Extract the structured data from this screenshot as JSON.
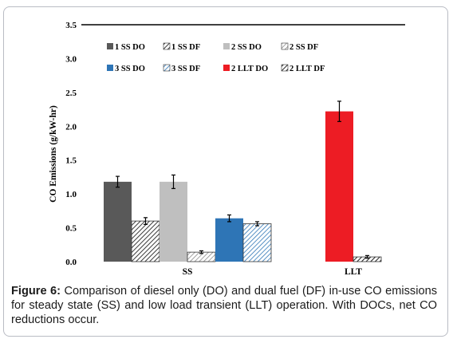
{
  "chart_data": {
    "type": "bar",
    "ylabel": "CO Emissions (g/kW-hr)",
    "xlabel": "",
    "ylim": [
      0.0,
      3.5
    ],
    "yticks": [
      "0.0",
      "0.5",
      "1.0",
      "1.5",
      "2.0",
      "2.5",
      "3.0",
      "3.5"
    ],
    "grid": false,
    "legend_position": "top",
    "groups": [
      {
        "category": "SS",
        "bars": [
          {
            "series": "1 SS DO",
            "value": 1.18,
            "error": 0.08,
            "color": "#595959",
            "pattern": "solid"
          },
          {
            "series": "1 SS DF",
            "value": 0.6,
            "error": 0.05,
            "color": "#595959",
            "pattern": "hatch"
          },
          {
            "series": "2 SS DO",
            "value": 1.18,
            "error": 0.1,
            "color": "#bfbfbf",
            "pattern": "solid"
          },
          {
            "series": "2 SS DF",
            "value": 0.14,
            "error": 0.02,
            "color": "#bfbfbf",
            "pattern": "hatch"
          },
          {
            "series": "3 SS DO",
            "value": 0.64,
            "error": 0.05,
            "color": "#2e75b6",
            "pattern": "solid"
          },
          {
            "series": "3 SS DF",
            "value": 0.56,
            "error": 0.03,
            "color": "#2e75b6",
            "pattern": "hatch"
          }
        ]
      },
      {
        "category": "LLT",
        "bars": [
          {
            "series": "2 LLT DO",
            "value": 2.22,
            "error": 0.15,
            "color": "#ed1c24",
            "pattern": "solid"
          },
          {
            "series": "2 LLT DF",
            "value": 0.07,
            "error": 0.02,
            "color": "#404040",
            "pattern": "hatch"
          }
        ]
      }
    ],
    "legend": [
      {
        "label": "1 SS DO",
        "color": "#595959",
        "pattern": "solid"
      },
      {
        "label": "1 SS DF",
        "color": "#595959",
        "pattern": "hatch"
      },
      {
        "label": "2 SS DO",
        "color": "#bfbfbf",
        "pattern": "solid"
      },
      {
        "label": "2 SS DF",
        "color": "#bfbfbf",
        "pattern": "hatch"
      },
      {
        "label": "3 SS DO",
        "color": "#2e75b6",
        "pattern": "solid"
      },
      {
        "label": "3 SS DF",
        "color": "#2e75b6",
        "pattern": "hatch"
      },
      {
        "label": "2 LLT DO",
        "color": "#ed1c24",
        "pattern": "solid"
      },
      {
        "label": "2 LLT DF",
        "color": "#404040",
        "pattern": "hatch"
      }
    ]
  },
  "caption": {
    "label": "Figure 6:",
    "text": " Comparison of diesel only (DO) and dual fuel (DF) in-use CO emissions for steady state (SS) and low load transient (LLT) operation. With DOCs, net CO reductions occur."
  }
}
